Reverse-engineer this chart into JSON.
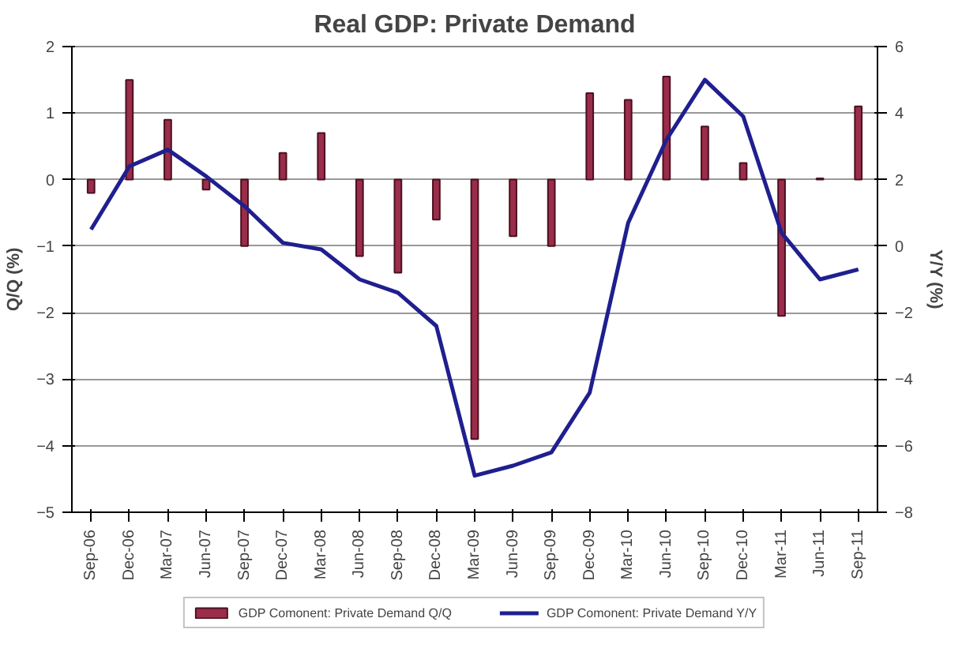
{
  "chart_data": {
    "type": "bar",
    "title": "Real GDP: Private Demand",
    "ylabel": "Q/Q (%)",
    "y2label": "Y/Y (%)",
    "categories": [
      "Sep-06",
      "Dec-06",
      "Mar-07",
      "Jun-07",
      "Sep-07",
      "Dec-07",
      "Mar-08",
      "Jun-08",
      "Sep-08",
      "Dec-08",
      "Mar-09",
      "Jun-09",
      "Sep-09",
      "Dec-09",
      "Mar-10",
      "Jun-10",
      "Sep-10",
      "Dec-10",
      "Mar-11",
      "Jun-11",
      "Sep-11"
    ],
    "series": [
      {
        "name": "GDP Comonent: Private Demand Q/Q",
        "color": "#9b2d4a",
        "values": [
          -0.2,
          1.5,
          0.9,
          -0.15,
          -1.0,
          0.4,
          0.7,
          -1.15,
          -1.4,
          -0.6,
          -3.9,
          -0.85,
          -1.0,
          1.3,
          1.2,
          1.55,
          0.8,
          0.25,
          -2.05,
          0.02,
          1.1
        ]
      },
      {
        "name": "GDP Comonent: Private Demand Y/Y",
        "type": "line",
        "axis": "y2",
        "color": "#1f1f8f",
        "values": [
          0.5,
          2.4,
          2.9,
          2.1,
          1.2,
          0.1,
          -0.1,
          -1.0,
          -1.4,
          -2.4,
          -6.9,
          -6.6,
          -6.2,
          -4.4,
          0.7,
          3.2,
          5.0,
          3.9,
          0.4,
          -1.0,
          -0.7
        ]
      }
    ],
    "ylim": [
      -5,
      2
    ],
    "yticks": [
      -5,
      -4,
      -3,
      -2,
      -1,
      0,
      1,
      2
    ],
    "y2lim": [
      -8,
      6
    ],
    "y2ticks": [
      -8,
      -6,
      -4,
      -2,
      0,
      2,
      4,
      6
    ],
    "grid": "y",
    "legend": "bottom",
    "line_style": "solid",
    "marker": "none"
  }
}
